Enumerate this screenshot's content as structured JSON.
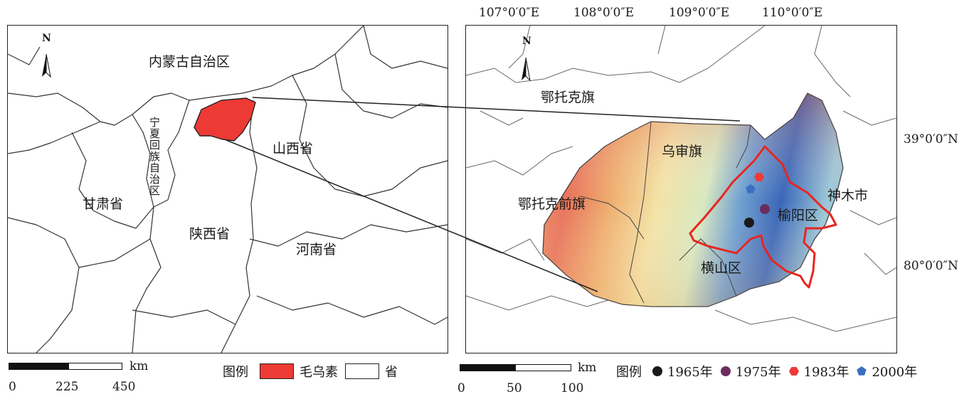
{
  "left_map": {
    "labels": {
      "inner_mongolia": "内蒙古自治区",
      "ningxia": "宁夏回族自治区",
      "gansu": "甘肃省",
      "shaanxi": "陕西省",
      "shanxi": "山西省",
      "henan": "河南省"
    },
    "north": "N",
    "scale": {
      "ticks": [
        "0",
        "225",
        "450"
      ],
      "unit": "km"
    },
    "legend": {
      "title": "图例",
      "items": [
        {
          "label": "毛乌素",
          "color": "#ee3a35"
        },
        {
          "label": "省",
          "color": "#ffffff"
        }
      ]
    }
  },
  "right_map": {
    "labels": {
      "etuoke": "鄂托克旗",
      "wushen": "乌审旗",
      "etuoke_qian": "鄂托克前旗",
      "shenmu": "神木市",
      "yuyang": "榆阳区",
      "hengshan": "横山区"
    },
    "north": "N",
    "lon_labels": [
      "107°0′0″E",
      "108°0′0″E",
      "109°0′0″E",
      "110°0′0″E"
    ],
    "lat_labels": [
      "39°0′0″N",
      "80°0′0″N"
    ],
    "scale": {
      "ticks": [
        "0",
        "50",
        "100"
      ],
      "unit": "km"
    },
    "legend": {
      "title": "图例",
      "items": [
        {
          "label": "1965年",
          "color": "#1a1a1a",
          "icon": "circle"
        },
        {
          "label": "1975年",
          "color": "#6b2d5e",
          "icon": "circle"
        },
        {
          "label": "1983年",
          "color": "#ee3a35",
          "icon": "hexagon"
        },
        {
          "label": "2000年",
          "color": "#3b6fc4",
          "icon": "pentagon"
        }
      ]
    }
  }
}
